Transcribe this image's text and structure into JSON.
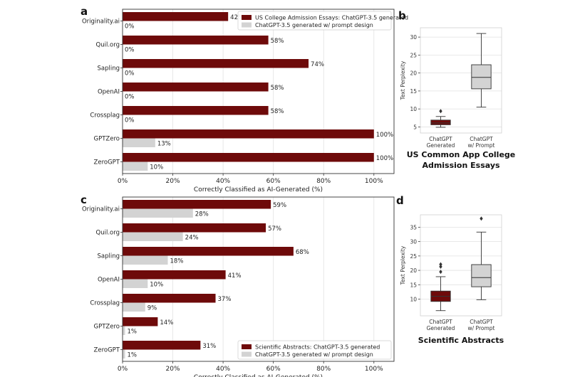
{
  "colors": {
    "primary": "#6e0a0a",
    "secondary": "#d3d3d3",
    "grid": "#e2e2e2"
  },
  "chart_data": [
    {
      "panel": "a",
      "type": "bar",
      "orientation": "horizontal",
      "categories": [
        "Originality.ai",
        "Quil.org",
        "Sapling",
        "OpenAI",
        "Crossplag",
        "GPTZero",
        "ZeroGPT"
      ],
      "series": [
        {
          "name": "US College Admission Essays: ChatGPT-3.5 generated",
          "values": [
            42,
            58,
            74,
            58,
            58,
            100,
            100
          ],
          "labels": [
            "42%",
            "58%",
            "74%",
            "58%",
            "58%",
            "100%",
            "100%"
          ]
        },
        {
          "name": "ChatGPT-3.5 generated w/ prompt design",
          "values": [
            0,
            0,
            0,
            0,
            0,
            13,
            10
          ],
          "labels": [
            "0%",
            "0%",
            "0%",
            "0%",
            "0%",
            "13%",
            "10%"
          ]
        }
      ],
      "xlabel": "Correctly Classified as AI-Generated (%)",
      "xticks": [
        "0%",
        "20%",
        "40%",
        "60%",
        "80%",
        "100%"
      ],
      "xlim": [
        0,
        108
      ],
      "legend": "top-right"
    },
    {
      "panel": "b",
      "type": "box",
      "categories": [
        "ChatGPT\nGenerated",
        "ChatGPT\nw/ Prompt"
      ],
      "boxes": [
        {
          "min": 4.9,
          "q1": 5.6,
          "median": 6.1,
          "q3": 6.9,
          "max": 7.9,
          "outliers": [
            9.4
          ]
        },
        {
          "min": 10.5,
          "q1": 15.6,
          "median": 18.8,
          "q3": 22.3,
          "max": 31.0,
          "outliers": []
        }
      ],
      "ylabel": "Text Perplexity",
      "yticks": [
        5,
        10,
        15,
        20,
        25,
        30
      ],
      "ylim": [
        3.3,
        32.6
      ],
      "caption_lines": [
        "US Common App College",
        "Admission Essays"
      ]
    },
    {
      "panel": "c",
      "type": "bar",
      "orientation": "horizontal",
      "categories": [
        "Originality.ai",
        "Quil.org",
        "Sapling",
        "OpenAI",
        "Crossplag",
        "GPTZero",
        "ZeroGPT"
      ],
      "series": [
        {
          "name": "Scientific Abstracts: ChatGPT-3.5 generated",
          "values": [
            59,
            57,
            68,
            41,
            37,
            14,
            31
          ],
          "labels": [
            "59%",
            "57%",
            "68%",
            "41%",
            "37%",
            "14%",
            "31%"
          ]
        },
        {
          "name": "ChatGPT-3.5 generated w/ prompt design",
          "values": [
            28,
            24,
            18,
            10,
            9,
            1,
            1
          ],
          "labels": [
            "28%",
            "24%",
            "18%",
            "10%",
            "9%",
            "1%",
            "1%"
          ]
        }
      ],
      "xlabel": "Correctly Classified as AI-Generated (%)",
      "xticks": [
        "0%",
        "20%",
        "40%",
        "60%",
        "80%",
        "100%"
      ],
      "xlim": [
        0,
        108
      ],
      "legend": "bottom-right"
    },
    {
      "panel": "d",
      "type": "box",
      "categories": [
        "ChatGPT\nGenerated",
        "ChatGPT\nw/ Prompt"
      ],
      "boxes": [
        {
          "min": 6.0,
          "q1": 9.2,
          "median": 11.0,
          "q3": 12.8,
          "max": 17.8,
          "outliers": [
            19.5,
            21.3,
            22.1
          ]
        },
        {
          "min": 9.8,
          "q1": 14.3,
          "median": 17.5,
          "q3": 22.0,
          "max": 33.3,
          "outliers": [
            38.0
          ]
        }
      ],
      "ylabel": "Text Perplexity",
      "yticks": [
        10,
        15,
        20,
        25,
        30,
        35
      ],
      "ylim": [
        4.2,
        39.3
      ],
      "caption_lines": [
        "Scientific Abstracts"
      ]
    }
  ]
}
